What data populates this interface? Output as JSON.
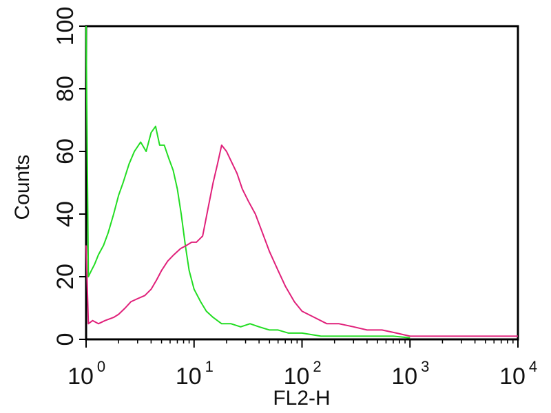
{
  "chart_data": {
    "type": "line",
    "xlabel": "FL2-H",
    "ylabel": "Counts",
    "xscale": "log",
    "xlim": [
      1,
      10000
    ],
    "ylim": [
      0,
      100
    ],
    "yticks": [
      "0",
      "20",
      "40",
      "60",
      "80",
      "100"
    ],
    "xticks": [
      {
        "base": "10",
        "exp": "0"
      },
      {
        "base": "10",
        "exp": "1"
      },
      {
        "base": "10",
        "exp": "2"
      },
      {
        "base": "10",
        "exp": "3"
      },
      {
        "base": "10",
        "exp": "4"
      }
    ],
    "grid": false,
    "series": [
      {
        "color": "#22dd22",
        "x": [
          1.0,
          1.05,
          1.12,
          1.2,
          1.3,
          1.45,
          1.6,
          1.8,
          2.0,
          2.2,
          2.5,
          2.8,
          3.2,
          3.6,
          4.0,
          4.4,
          4.8,
          5.3,
          5.8,
          6.4,
          7.0,
          7.6,
          8.3,
          9.0,
          10.0,
          11.5,
          13.0,
          15.0,
          18.0,
          22.0,
          27.0,
          33.0,
          40.0,
          50.0,
          60.0,
          75.0,
          100.0,
          150.0,
          250.0,
          400.0,
          700.0,
          1000.0
        ],
        "y": [
          100,
          20,
          22,
          24,
          27,
          30,
          34,
          40,
          46,
          50,
          56,
          60,
          63,
          60,
          66,
          68,
          62,
          62,
          58,
          54,
          48,
          40,
          30,
          22,
          16,
          12,
          9,
          7,
          5,
          5,
          4,
          5,
          4,
          3,
          3,
          2,
          2,
          1,
          1,
          1,
          1,
          0.5
        ]
      },
      {
        "color": "#e0207a",
        "x": [
          1.0,
          1.05,
          1.15,
          1.3,
          1.5,
          1.8,
          2.0,
          2.3,
          2.6,
          3.0,
          3.5,
          4.0,
          4.5,
          5.0,
          5.7,
          6.5,
          7.5,
          8.5,
          9.5,
          10.5,
          12.0,
          13.5,
          15.0,
          16.5,
          18.0,
          20.0,
          22.0,
          25.0,
          28.0,
          32.0,
          37.0,
          42.0,
          50.0,
          60.0,
          70.0,
          85.0,
          100.0,
          130.0,
          170.0,
          220.0,
          300.0,
          400.0,
          550.0,
          750.0,
          1000.0,
          2000.0,
          5000.0,
          10000.0
        ],
        "y": [
          30,
          5,
          6,
          5,
          6,
          7,
          8,
          10,
          12,
          13,
          14,
          16,
          19,
          22,
          25,
          27,
          29,
          30,
          31,
          31,
          33,
          42,
          50,
          56,
          62,
          60,
          57,
          53,
          48,
          44,
          40,
          35,
          28,
          22,
          17,
          12,
          9,
          7,
          5,
          5,
          4,
          3,
          3,
          2,
          1,
          1,
          1,
          1
        ]
      }
    ]
  }
}
